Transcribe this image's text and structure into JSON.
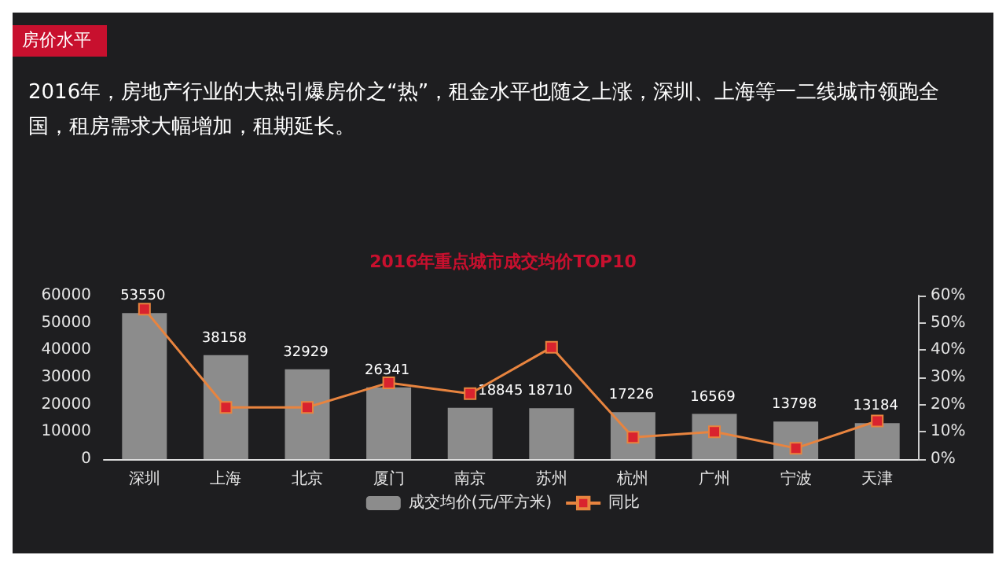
{
  "chart_data": {
    "type": "bar",
    "title": "2016年重点城市成交均价TOP10",
    "subtitle": "2016年，房地产行业的大热引爆房价之“热”，租金水平也随之上涨，深圳、上海等一二线城市领跑全国，租房需求大幅增加，租期延长。",
    "annotations": [
      "房价水平"
    ],
    "categories": [
      "深圳",
      "上海",
      "北京",
      "厦门",
      "南京",
      "苏州",
      "杭州",
      "广州",
      "宁波",
      "天津"
    ],
    "series": [
      {
        "name": "成交均价(元/平方米)",
        "color": "#8c8c8c",
        "values": [
          53550,
          38158,
          32929,
          26341,
          18845,
          18710,
          17226,
          16569,
          13798,
          13184
        ],
        "value_labels": [
          "53550",
          "38158",
          "32929",
          "26341",
          "18845",
          "18710",
          "17226",
          "16569",
          "13798",
          "13184"
        ]
      },
      {
        "name": "同比",
        "type": "line",
        "axis": "y2",
        "color": "#e8843f",
        "values": [
          55,
          19,
          19,
          28,
          24,
          41,
          8,
          10,
          4,
          14
        ]
      }
    ],
    "ylim": [
      0,
      60000
    ],
    "yticks": [
      0,
      10000,
      20000,
      30000,
      40000,
      50000,
      60000
    ],
    "y2lim": [
      0,
      60
    ],
    "y2ticks": [
      {
        "value": 0,
        "label": "0%"
      },
      {
        "value": 10,
        "label": "10%"
      },
      {
        "value": 20,
        "label": "20%"
      },
      {
        "value": 30,
        "label": "30%"
      },
      {
        "value": 40,
        "label": "40%"
      },
      {
        "value": 50,
        "label": "50%"
      },
      {
        "value": 60,
        "label": "60%"
      }
    ],
    "grid": false,
    "legend": "bottom",
    "marker": "square",
    "line_style": "solid"
  }
}
